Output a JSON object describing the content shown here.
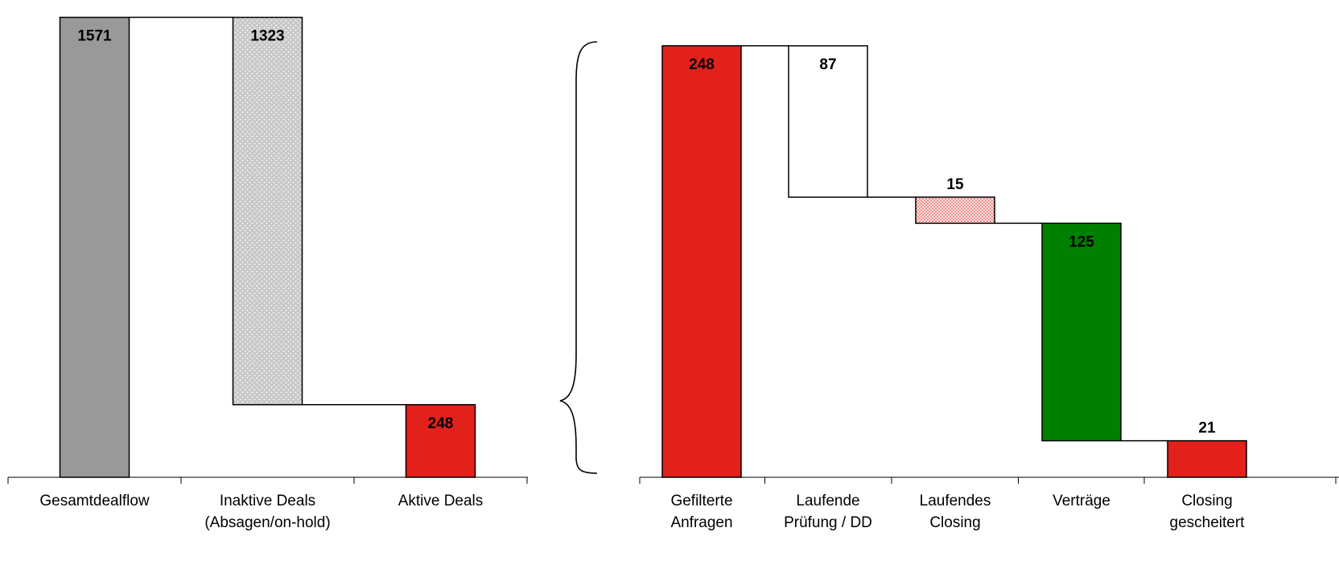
{
  "chart_data": [
    {
      "type": "bar",
      "variant": "waterfall",
      "categories": [
        "Gesamtdealflow",
        "Inaktive Deals\n(Absagen/on-hold)",
        "Aktive Deals"
      ],
      "values": [
        1571,
        1323,
        248
      ],
      "steps": [
        {
          "start": 0,
          "end": 1571,
          "label": "1571",
          "fill": "#999999",
          "pattern": "none"
        },
        {
          "start": 248,
          "end": 1571,
          "label": "1323",
          "fill": "#c8c8c8",
          "pattern": "dots-white"
        },
        {
          "start": 0,
          "end": 248,
          "label": "248",
          "fill": "#e3211b",
          "pattern": "none"
        }
      ],
      "ylim": [
        0,
        1600
      ],
      "grid": false,
      "title": "",
      "xlabel": "",
      "ylabel": ""
    },
    {
      "type": "bar",
      "variant": "waterfall",
      "categories": [
        "Gefilterte\nAnfragen",
        "Laufende\nPrüfung / DD",
        "Laufendes\nClosing",
        "Verträge",
        "Closing\ngescheitert"
      ],
      "values": [
        248,
        87,
        15,
        125,
        21
      ],
      "steps": [
        {
          "start": 0,
          "end": 248,
          "label": "248",
          "fill": "#e3211b",
          "pattern": "none",
          "label_pos": "inside-top"
        },
        {
          "start": 161,
          "end": 248,
          "label": "87",
          "fill": "#ffffff",
          "pattern": "none",
          "label_pos": "inside-top"
        },
        {
          "start": 146,
          "end": 161,
          "label": "15",
          "fill": "#f6cccc",
          "pattern": "dots-red",
          "label_pos": "above"
        },
        {
          "start": 21,
          "end": 146,
          "label": "125",
          "fill": "#008000",
          "pattern": "none",
          "label_pos": "inside-top"
        },
        {
          "start": 0,
          "end": 21,
          "label": "21",
          "fill": "#e3211b",
          "pattern": "none",
          "label_pos": "above"
        }
      ],
      "ylim": [
        0,
        266
      ],
      "grid": false,
      "title": "",
      "xlabel": "",
      "ylabel": ""
    }
  ]
}
